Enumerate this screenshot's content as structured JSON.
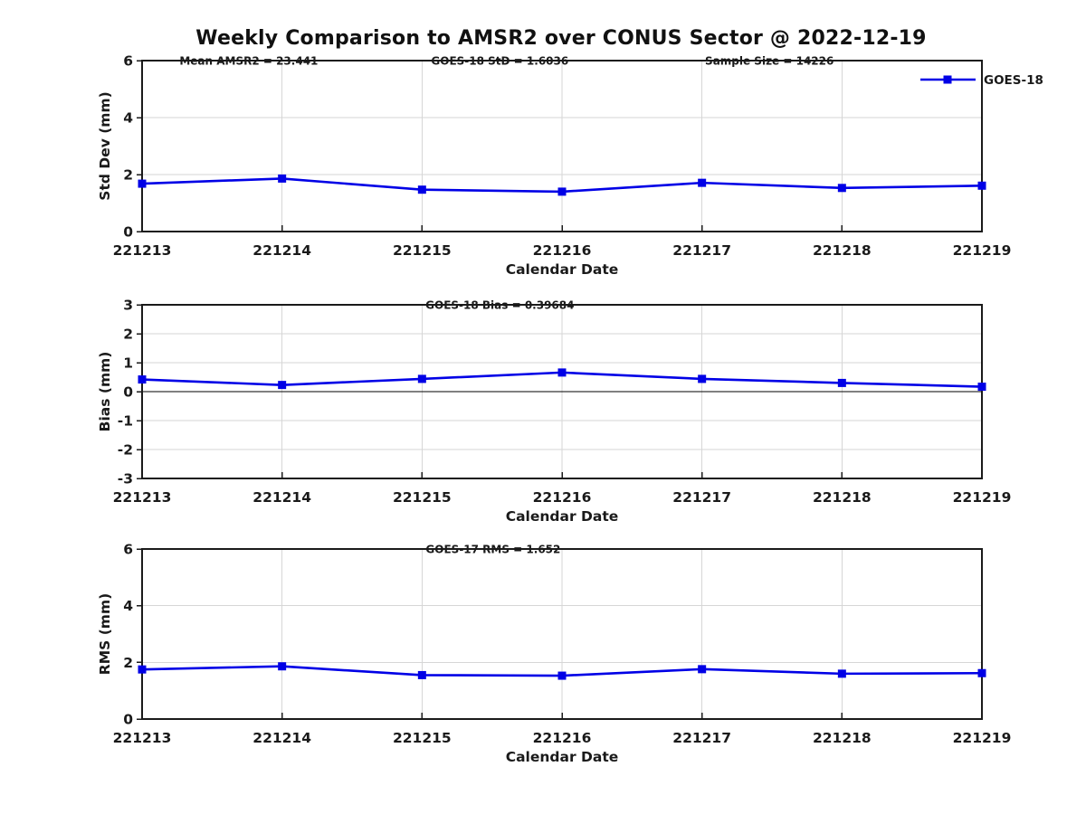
{
  "title": "Weekly Comparison to AMSR2 over CONUS Sector @ 2022-12-19",
  "colors": {
    "series": "#0000e6",
    "grid": "#d6d6d6",
    "axis": "#1a1a1a",
    "text": "#1a1a1a",
    "zero_line": "#000000"
  },
  "legend": {
    "label": "GOES-18"
  },
  "xlabel": "Calendar Date",
  "chart_data": [
    {
      "type": "line",
      "categories": [
        "221213",
        "221214",
        "221215",
        "221216",
        "221217",
        "221218",
        "221219"
      ],
      "series": [
        {
          "name": "GOES-18",
          "values": [
            1.68,
            1.86,
            1.47,
            1.4,
            1.71,
            1.53,
            1.61
          ]
        }
      ],
      "title": "",
      "xlabel": "Calendar Date",
      "ylabel": "Std Dev (mm)",
      "ylim": [
        0,
        6
      ],
      "yticks": [
        0,
        2,
        4,
        6
      ],
      "grid": true,
      "zero_line": false,
      "show_legend": true,
      "legend_position": "top-right",
      "annotations": [
        {
          "text": "Mean AMSR2 = 23.441",
          "xfrac": 0.127
        },
        {
          "text": "GOES-18 StD = 1.6036",
          "xfrac": 0.426
        },
        {
          "text": "Sample Size = 14226",
          "xfrac": 0.747
        }
      ]
    },
    {
      "type": "line",
      "categories": [
        "221213",
        "221214",
        "221215",
        "221216",
        "221217",
        "221218",
        "221219"
      ],
      "series": [
        {
          "name": "GOES-18",
          "values": [
            0.42,
            0.23,
            0.44,
            0.66,
            0.44,
            0.3,
            0.17
          ]
        }
      ],
      "title": "",
      "xlabel": "Calendar Date",
      "ylabel": "Bias (mm)",
      "ylim": [
        -3,
        3
      ],
      "yticks": [
        -3,
        -2,
        -1,
        0,
        1,
        2,
        3
      ],
      "grid": true,
      "zero_line": true,
      "show_legend": false,
      "annotations": [
        {
          "text": "GOES-18 Bias  = 0.39684",
          "xfrac": 0.426
        }
      ]
    },
    {
      "type": "line",
      "categories": [
        "221213",
        "221214",
        "221215",
        "221216",
        "221217",
        "221218",
        "221219"
      ],
      "series": [
        {
          "name": "GOES-18",
          "values": [
            1.75,
            1.86,
            1.55,
            1.53,
            1.76,
            1.6,
            1.62
          ]
        }
      ],
      "title": "",
      "xlabel": "Calendar Date",
      "ylabel": "RMS (mm)",
      "ylim": [
        0,
        6
      ],
      "yticks": [
        0,
        2,
        4,
        6
      ],
      "grid": true,
      "zero_line": false,
      "show_legend": false,
      "annotations": [
        {
          "text": "GOES-17 RMS = 1.652",
          "xfrac": 0.418
        }
      ]
    }
  ]
}
